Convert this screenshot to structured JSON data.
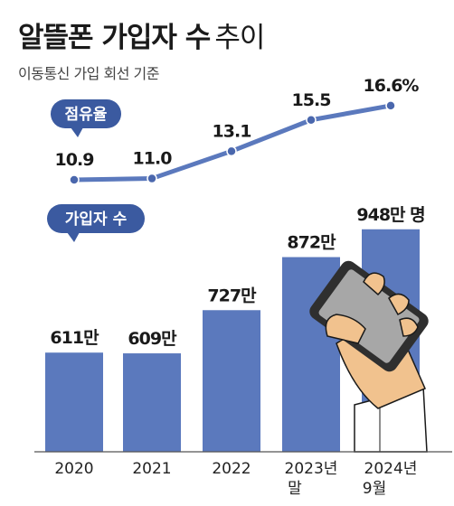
{
  "title_bold": "알뜰폰 가입자 수",
  "title_light": "추이",
  "subtitle": "이동통신 가입 회선 기준",
  "colors": {
    "bar": "#5b79bd",
    "line": "#5b79bd",
    "point": "#4a67ad",
    "badge": "#3b5aa0",
    "text": "#1a1a1a",
    "axis": "#555555"
  },
  "chart_data": {
    "type": "bar",
    "categories": [
      "2020",
      "2021",
      "2022",
      "2023년\n말",
      "2024년\n9월"
    ],
    "series": [
      {
        "name": "가입자 수",
        "type": "bar",
        "values": [
          611,
          609,
          727,
          872,
          948
        ],
        "labels": [
          "611만",
          "609만",
          "727만",
          "872만",
          "948만 명"
        ]
      },
      {
        "name": "점유율",
        "type": "line",
        "values": [
          10.9,
          11.0,
          13.1,
          15.5,
          16.6
        ],
        "labels": [
          "10.9",
          "11.0",
          "13.1",
          "15.5",
          "16.6%"
        ]
      }
    ],
    "legend": [
      "점유율",
      "가입자 수"
    ]
  }
}
